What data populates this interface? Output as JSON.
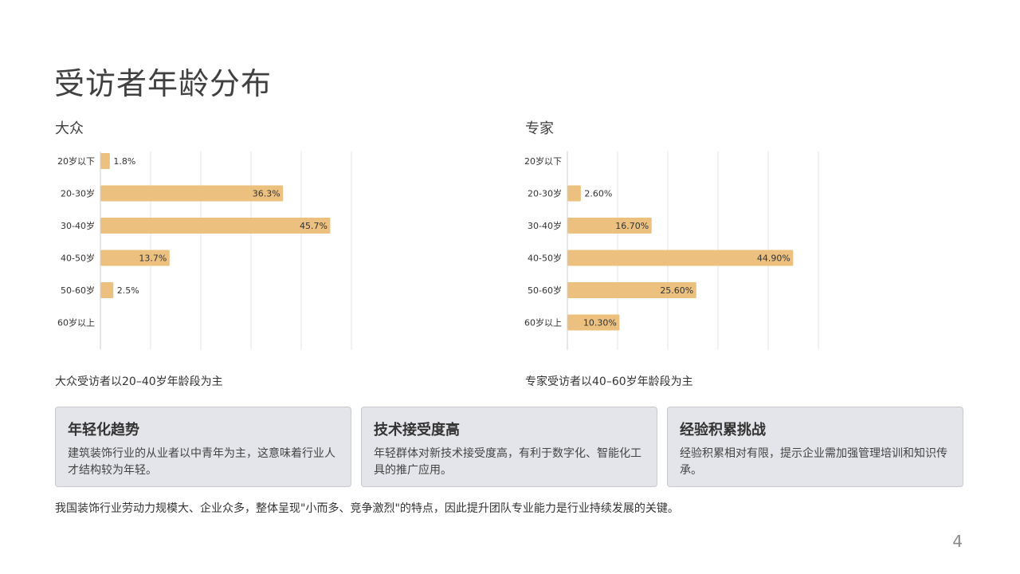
{
  "page": {
    "title": "受访者年龄分布",
    "page_number": "4",
    "footer_note": "我国装饰行业劳动力规模大、企业众多，整体呈现\"小而多、竞争激烈\"的特点，因此提升团队专业能力是行业持续发展的关键。"
  },
  "colors": {
    "bar": "#ecc17f",
    "grid": "#e6e6e6",
    "axis": "#cccccc"
  },
  "charts": {
    "public": {
      "label": "大众",
      "caption": "大众受访者以20–40岁年龄段为主"
    },
    "expert": {
      "label": "专家",
      "caption": "专家受访者以40–60岁年龄段为主"
    }
  },
  "chart_data": [
    {
      "type": "bar",
      "orientation": "horizontal",
      "title": "大众",
      "categories": [
        "20岁以下",
        "20-30岁",
        "30-40岁",
        "40-50岁",
        "50-60岁",
        "60岁以上"
      ],
      "values": [
        1.8,
        36.3,
        45.7,
        13.7,
        2.5,
        0
      ],
      "value_labels": [
        "1.8%",
        "36.3%",
        "45.7%",
        "13.7%",
        "2.5%",
        ""
      ],
      "xlim": [
        0,
        50
      ],
      "xticks": [
        "0%",
        "10%",
        "20%",
        "30%",
        "40%",
        "50%"
      ],
      "grid": true
    },
    {
      "type": "bar",
      "orientation": "horizontal",
      "title": "专家",
      "categories": [
        "20岁以下",
        "20-30岁",
        "30-40岁",
        "40-50岁",
        "50-60岁",
        "60岁以上"
      ],
      "values": [
        0,
        2.6,
        16.7,
        44.9,
        25.6,
        10.3
      ],
      "value_labels": [
        "",
        "2.60%",
        "16.70%",
        "44.90%",
        "25.60%",
        "10.30%"
      ],
      "xlim": [
        0,
        50
      ],
      "xticks": [
        "0%",
        "10%",
        "20%",
        "30%",
        "40%",
        "50%"
      ],
      "grid": true
    }
  ],
  "cards": [
    {
      "title": "年轻化趋势",
      "text": "建筑装饰行业的从业者以中青年为主，这意味着行业人才结构较为年轻。"
    },
    {
      "title": "技术接受度高",
      "text": "年轻群体对新技术接受度高，有利于数字化、智能化工具的推广应用。"
    },
    {
      "title": "经验积累挑战",
      "text": "经验积累相对有限，提示企业需加强管理培训和知识传承。"
    }
  ]
}
